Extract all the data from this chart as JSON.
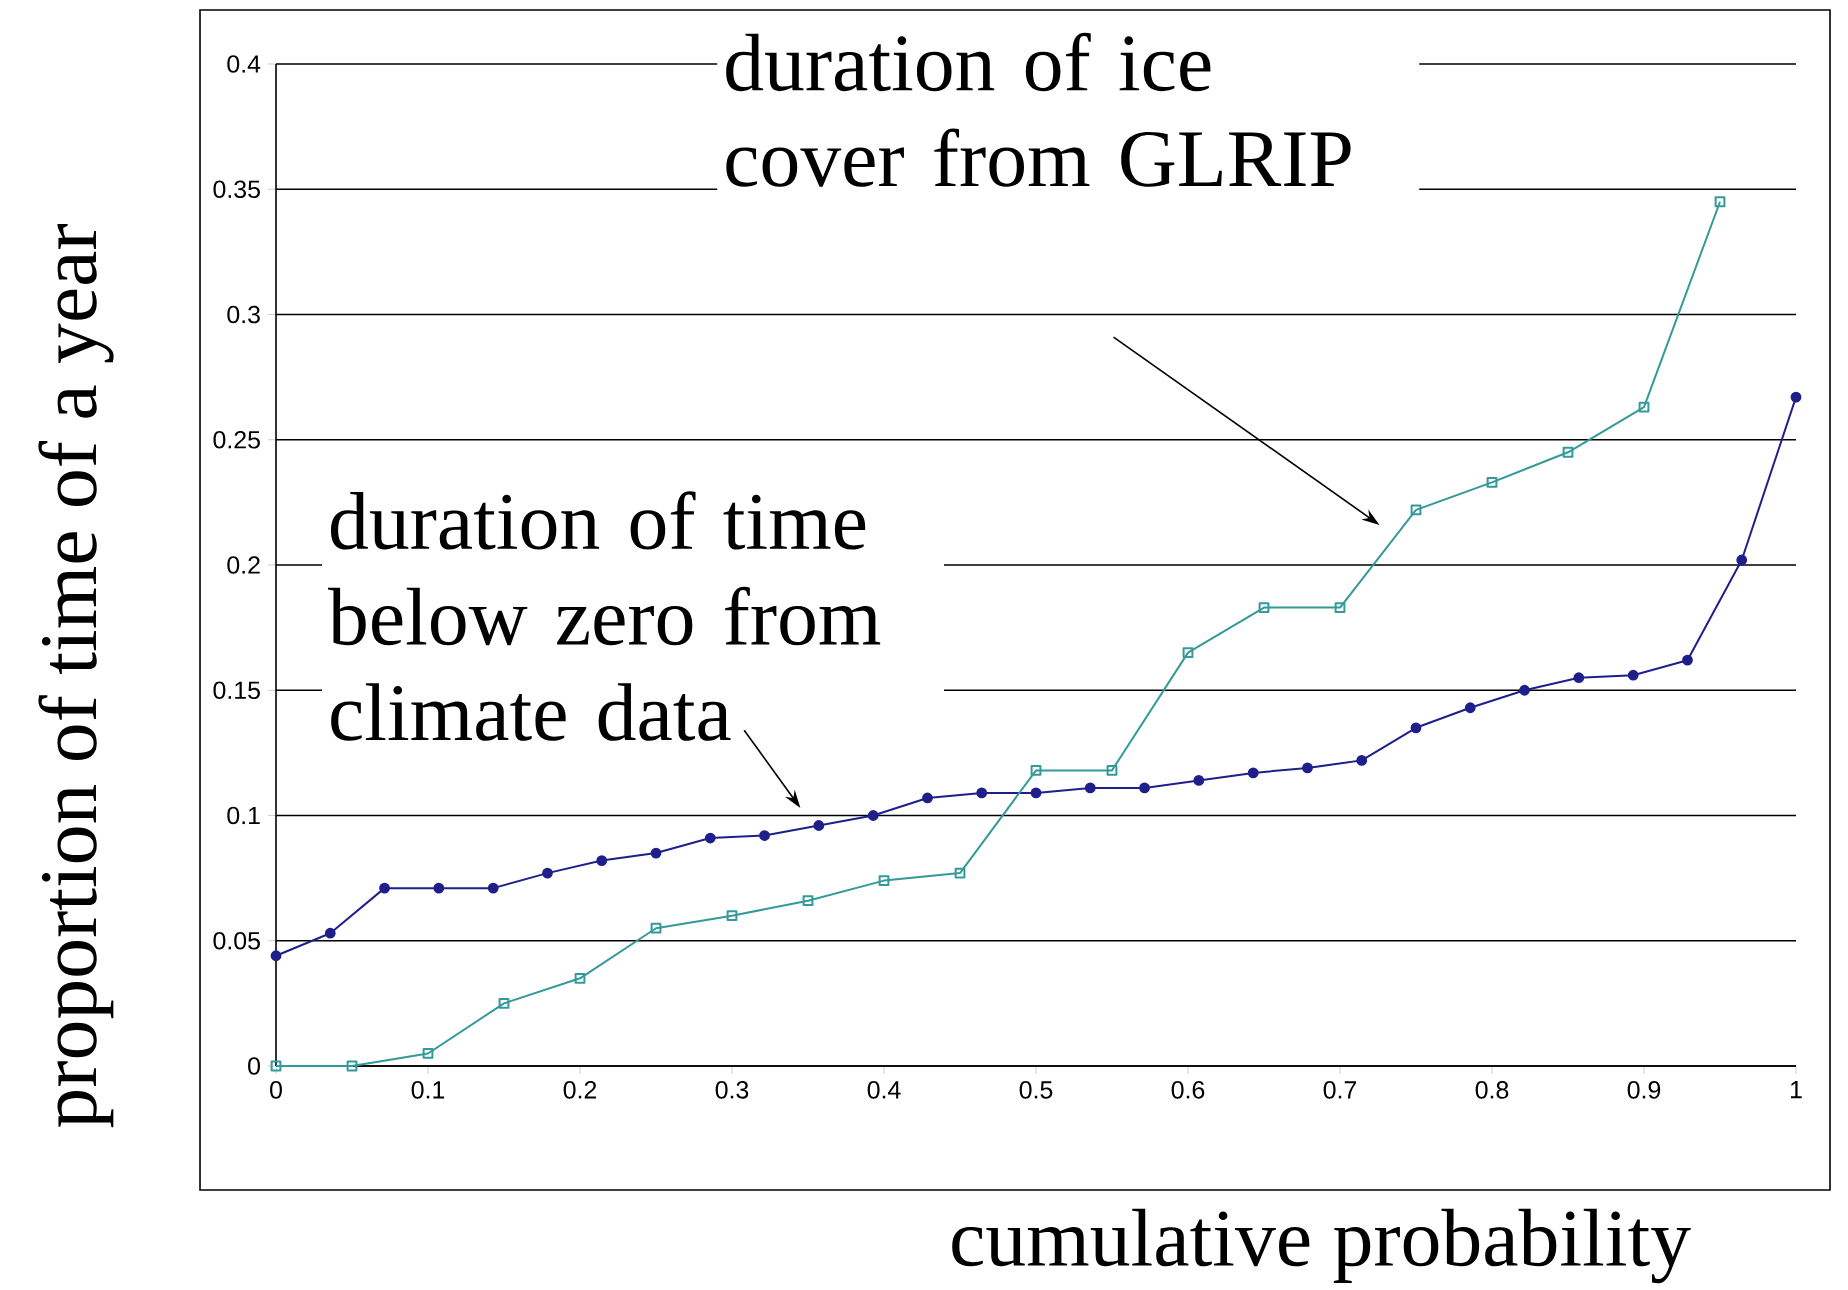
{
  "chart_data": {
    "type": "line",
    "xlabel": "cumulative probability",
    "ylabel": "proportion of time of a year",
    "xlim": [
      0,
      1
    ],
    "ylim": [
      0,
      0.4
    ],
    "xticks": [
      0,
      0.1,
      0.2,
      0.3,
      0.4,
      0.5,
      0.6,
      0.7,
      0.8,
      0.9,
      1
    ],
    "yticks": [
      0,
      0.05,
      0.1,
      0.15,
      0.2,
      0.25,
      0.3,
      0.35,
      0.4
    ],
    "grid": "y",
    "series": [
      {
        "color": "#1f1f8c",
        "marker": "circle",
        "x": [
          0,
          0.0357,
          0.0714,
          0.1071,
          0.1429,
          0.1786,
          0.2143,
          0.25,
          0.2857,
          0.3214,
          0.3571,
          0.3929,
          0.4286,
          0.4643,
          0.5,
          0.5357,
          0.5714,
          0.6071,
          0.6429,
          0.6786,
          0.7143,
          0.75,
          0.7857,
          0.8214,
          0.8571,
          0.8929,
          0.9286,
          0.9643,
          1
        ],
        "values": [
          0.044,
          0.053,
          0.071,
          0.071,
          0.071,
          0.077,
          0.082,
          0.085,
          0.091,
          0.092,
          0.096,
          0.1,
          0.107,
          0.109,
          0.109,
          0.111,
          0.111,
          0.114,
          0.117,
          0.119,
          0.122,
          0.135,
          0.143,
          0.15,
          0.155,
          0.156,
          0.162,
          0.202,
          0.267
        ]
      },
      {
        "color": "#339a99",
        "marker": "square",
        "x": [
          0,
          0.05,
          0.1,
          0.15,
          0.2,
          0.25,
          0.3,
          0.35,
          0.4,
          0.45,
          0.5,
          0.55,
          0.6,
          0.65,
          0.7,
          0.75,
          0.8,
          0.85,
          0.9,
          0.95
        ],
        "values": [
          0,
          0,
          0.005,
          0.025,
          0.035,
          0.055,
          0.06,
          0.066,
          0.074,
          0.077,
          0.118,
          0.118,
          0.165,
          0.183,
          0.183,
          0.222,
          0.233,
          0.245,
          0.263,
          0.345
        ]
      }
    ],
    "annotations": [
      "duration of ice cover from GLRIP",
      "duration of time below zero from climate data"
    ]
  }
}
